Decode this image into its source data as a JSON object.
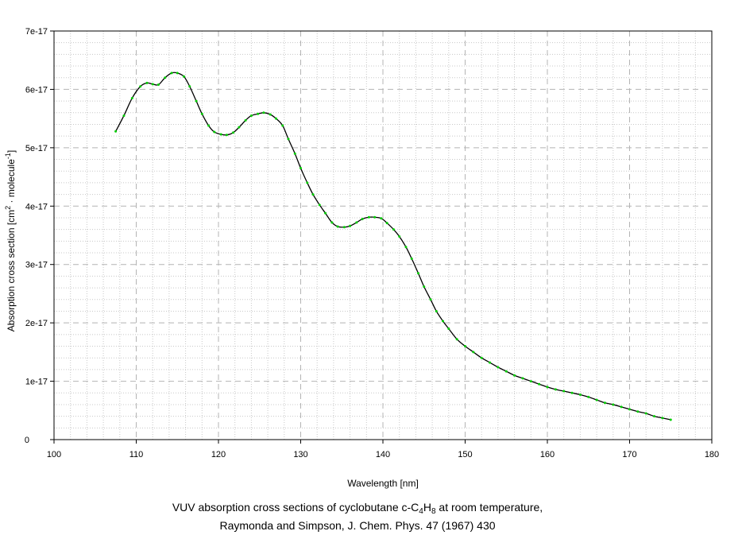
{
  "chart_data": {
    "type": "line",
    "xlabel": "Wavelength [nm]",
    "ylabel": {
      "pre": "Absorption cross section [cm",
      "sup1": "2",
      "mid": " · molecule",
      "sup2": "-1",
      "post": "]"
    },
    "xlim": [
      100,
      180
    ],
    "ylim": [
      0,
      7e-17
    ],
    "x_ticks": [
      100,
      110,
      120,
      130,
      140,
      150,
      160,
      170,
      180
    ],
    "y_ticks": [
      0,
      1e-17,
      2e-17,
      3e-17,
      4e-17,
      5e-17,
      6e-17,
      7e-17
    ],
    "x_tick_labels": [
      "100",
      "110",
      "120",
      "130",
      "140",
      "150",
      "160",
      "170",
      "180"
    ],
    "y_tick_labels": [
      "0",
      "1e-17",
      "2e-17",
      "3e-17",
      "4e-17",
      "5e-17",
      "6e-17",
      "7e-17"
    ],
    "grid": true,
    "series_colors": {
      "line": "#000000",
      "markers": "#00cc00"
    },
    "series": [
      {
        "x": [
          107.5,
          108.5,
          109.5,
          110.5,
          111.3,
          112.0,
          112.7,
          113.5,
          114.3,
          115.0,
          115.8,
          116.5,
          117.3,
          118.0,
          118.8,
          119.5,
          120.3,
          121.0,
          121.8,
          122.5,
          123.3,
          124.0,
          124.8,
          125.5,
          126.3,
          127.0,
          127.8,
          128.5,
          129.3,
          130.0,
          130.8,
          131.5,
          132.3,
          133.0,
          133.8,
          134.5,
          135.3,
          136.0,
          136.8,
          137.5,
          138.3,
          139.0,
          139.8,
          140.5,
          141.3,
          142.0,
          142.8,
          143.5,
          144.3,
          145.0,
          145.8,
          146.5,
          147.3,
          148.0,
          149.0,
          150.0,
          151.0,
          152.0,
          153.0,
          154.0,
          155.0,
          156.0,
          157.0,
          158.0,
          159.0,
          160.0,
          161.0,
          162.0,
          163.0,
          164.0,
          165.0,
          166.0,
          167.0,
          168.0,
          169.0,
          170.0,
          171.0,
          172.0,
          173.0,
          174.0,
          175.0
        ],
        "y": [
          5.28e-17,
          5.55e-17,
          5.85e-17,
          6.05e-17,
          6.11e-17,
          6.09e-17,
          6.08e-17,
          6.2e-17,
          6.28e-17,
          6.28e-17,
          6.22e-17,
          6.05e-17,
          5.8e-17,
          5.58e-17,
          5.38e-17,
          5.27e-17,
          5.23e-17,
          5.22e-17,
          5.26e-17,
          5.35e-17,
          5.47e-17,
          5.55e-17,
          5.58e-17,
          5.6e-17,
          5.57e-17,
          5.5e-17,
          5.38e-17,
          5.15e-17,
          4.9e-17,
          4.65e-17,
          4.4e-17,
          4.2e-17,
          4.02e-17,
          3.88e-17,
          3.72e-17,
          3.65e-17,
          3.64e-17,
          3.66e-17,
          3.72e-17,
          3.78e-17,
          3.81e-17,
          3.81e-17,
          3.79e-17,
          3.71e-17,
          3.6e-17,
          3.48e-17,
          3.3e-17,
          3.1e-17,
          2.85e-17,
          2.62e-17,
          2.4e-17,
          2.2e-17,
          2.03e-17,
          1.9e-17,
          1.72e-17,
          1.6e-17,
          1.5e-17,
          1.4e-17,
          1.32e-17,
          1.24e-17,
          1.17e-17,
          1.1e-17,
          1.05e-17,
          1e-17,
          9.5e-18,
          9e-18,
          8.6e-18,
          8.3e-18,
          8e-18,
          7.7e-18,
          7.3e-18,
          6.8e-18,
          6.3e-18,
          6e-18,
          5.6e-18,
          5.2e-18,
          4.8e-18,
          4.5e-18,
          4e-18,
          3.7e-18,
          3.4e-18
        ]
      }
    ]
  },
  "caption": {
    "line1": {
      "pre": "VUV absorption cross sections of cyclobutane c-C",
      "sub1": "4",
      "mid": "H",
      "sub2": "8",
      "post": " at room temperature,"
    },
    "line2": "Raymonda and Simpson, J. Chem. Phys. 47 (1967) 430"
  }
}
